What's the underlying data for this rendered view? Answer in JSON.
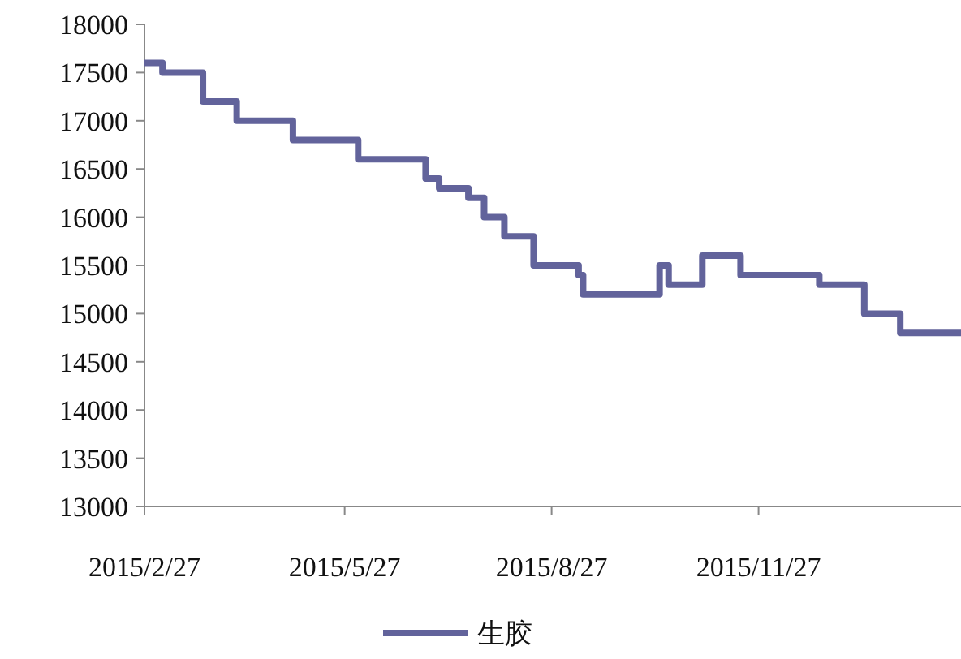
{
  "chart_data": {
    "type": "step",
    "x": [
      "2015-02-27",
      "2015-03-07",
      "2015-03-25",
      "2015-04-09",
      "2015-05-04",
      "2015-06-02",
      "2015-07-02",
      "2015-07-08",
      "2015-07-21",
      "2015-07-28",
      "2015-08-06",
      "2015-08-19",
      "2015-09-08",
      "2015-09-10",
      "2015-10-14",
      "2015-10-18",
      "2015-11-02",
      "2015-11-19",
      "2015-12-24",
      "2016-01-13",
      "2016-01-29",
      "2016-02-25"
    ],
    "series": [
      {
        "name": "生胶",
        "color": "#62639b",
        "values": [
          17600,
          17500,
          17200,
          17000,
          16800,
          16600,
          16400,
          16300,
          16200,
          16000,
          15800,
          15500,
          15400,
          15200,
          15500,
          15300,
          15600,
          15400,
          15300,
          15000,
          14800,
          14800
        ]
      }
    ],
    "xlim": [
      "2015-02-27",
      "2016-02-25"
    ],
    "xticks": [
      {
        "value": "2015-02-27",
        "label": "2015/2/27"
      },
      {
        "value": "2015-05-27",
        "label": "2015/5/27"
      },
      {
        "value": "2015-08-27",
        "label": "2015/8/27"
      },
      {
        "value": "2015-11-27",
        "label": "2015/11/27"
      }
    ],
    "ylim": [
      13000,
      18000
    ],
    "yticks": [
      13000,
      13500,
      14000,
      14500,
      15000,
      15500,
      16000,
      16500,
      17000,
      17500,
      18000
    ],
    "legend": "bottom"
  }
}
